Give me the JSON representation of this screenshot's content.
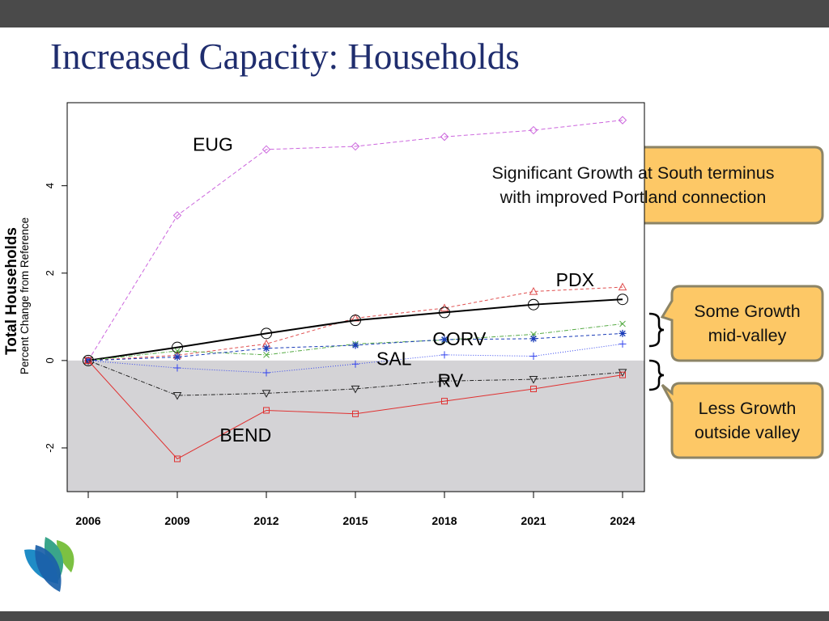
{
  "slide": {
    "title": "Increased Capacity:  Households"
  },
  "colors": {
    "bar": "#4a4a4a",
    "title": "#1f2d6e",
    "shade": "#d4d3d6",
    "callout_fill": "#fdc866",
    "callout_border": "#8c8466"
  },
  "callouts": {
    "south": {
      "lines": [
        "Significant Growth at South terminus",
        "with improved Portland connection"
      ]
    },
    "mid": {
      "lines": [
        "Some Growth",
        "mid-valley"
      ]
    },
    "outside": {
      "lines": [
        "Less Growth",
        "outside valley"
      ]
    }
  },
  "logo": {
    "icon": "leaf-logo-icon"
  },
  "chart_data": {
    "type": "line",
    "title": "",
    "ylabel": "Total Households",
    "ylabel_sub": "Percent Change from Reference",
    "xlabel": "",
    "x": [
      2006,
      2009,
      2012,
      2015,
      2018,
      2021,
      2024
    ],
    "x_tick_labels": [
      "2006",
      "2009",
      "2012",
      "2015",
      "2018",
      "2021",
      "2024"
    ],
    "ylim": [
      -3,
      5.9
    ],
    "y_ticks": [
      -2,
      0,
      2,
      4
    ],
    "y_tick_labels": [
      "-2",
      "0",
      "2",
      "4"
    ],
    "shade_below_zero": true,
    "grid": false,
    "series": [
      {
        "name": "EUG",
        "label_at": [
          2010.2,
          4.8
        ],
        "color": "#cc66dd",
        "dash": "5,3",
        "width": 1,
        "marker": "diamond",
        "values": [
          0,
          3.32,
          4.83,
          4.9,
          5.12,
          5.27,
          5.5
        ]
      },
      {
        "name": "PDX",
        "label_at": [
          2022.4,
          1.7
        ],
        "color": "#e05050",
        "dash": "4,3",
        "width": 1,
        "marker": "triangle",
        "values": [
          0,
          0.12,
          0.38,
          0.97,
          1.2,
          1.58,
          1.68
        ]
      },
      {
        "name": "",
        "color": "#000000",
        "dash": "",
        "width": 2,
        "marker": "circle",
        "values": [
          0,
          0.3,
          0.62,
          0.92,
          1.1,
          1.28,
          1.4
        ]
      },
      {
        "name": "",
        "color": "#55aa44",
        "dash": "5,2,1,2",
        "width": 1,
        "marker": "x",
        "values": [
          0,
          0.22,
          0.13,
          0.38,
          0.47,
          0.6,
          0.84
        ]
      },
      {
        "name": "CORV",
        "label_at": [
          2018.5,
          0.35
        ],
        "color": "#1a3cb8",
        "dash": "4,3",
        "width": 1,
        "marker": "asterisk",
        "values": [
          0,
          0.08,
          0.28,
          0.35,
          0.48,
          0.5,
          0.62
        ]
      },
      {
        "name": "SAL",
        "label_at": [
          2016.3,
          -0.1
        ],
        "color": "#3344ee",
        "dash": "1,2",
        "width": 1,
        "marker": "plus",
        "values": [
          0,
          -0.17,
          -0.28,
          -0.08,
          0.13,
          0.1,
          0.38
        ]
      },
      {
        "name": "RV",
        "label_at": [
          2018.2,
          -0.6
        ],
        "color": "#222222",
        "dash": "5,2,1,2",
        "width": 1,
        "marker": "triangle-down",
        "values": [
          0,
          -0.8,
          -0.75,
          -0.65,
          -0.47,
          -0.43,
          -0.27
        ]
      },
      {
        "name": "BEND",
        "label_at": [
          2011.3,
          -1.85
        ],
        "color": "#e03030",
        "dash": "",
        "width": 1,
        "marker": "square",
        "values": [
          0,
          -2.25,
          -1.14,
          -1.22,
          -0.93,
          -0.65,
          -0.33
        ]
      }
    ]
  }
}
